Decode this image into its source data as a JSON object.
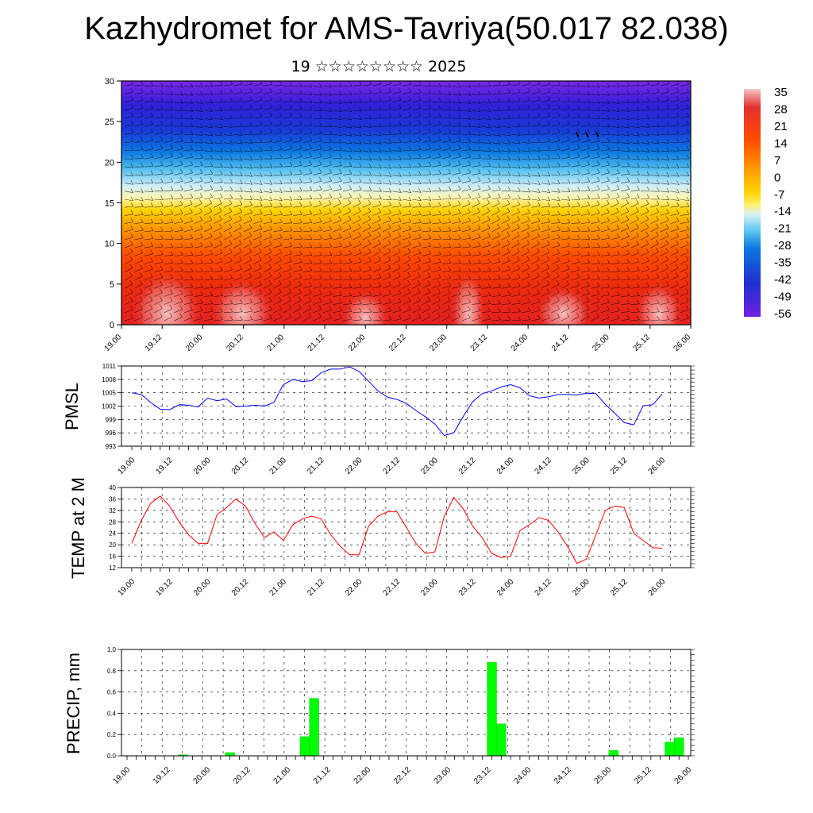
{
  "header": {
    "title": "Kazhydromet for AMS-Tavriya(50.017 82.038)",
    "subtitle": "19 ☆☆☆☆☆☆☆☆ 2025"
  },
  "time_labels": [
    "19.00",
    "19.12",
    "20.00",
    "20.12",
    "21.00",
    "21.12",
    "22.00",
    "22.12",
    "23.00",
    "23.12",
    "24.00",
    "24.12",
    "25.00",
    "25.12",
    "26.00"
  ],
  "chart_data": [
    {
      "id": "cross_section",
      "type": "heatmap",
      "description_kind": "temperature cross-section with wind barbs",
      "ylim": [
        0,
        30
      ],
      "yticks": [
        0,
        5,
        10,
        15,
        20,
        25,
        30
      ],
      "colorbar_labels": [
        "35",
        "28",
        "21",
        "14",
        "7",
        "0",
        "-7",
        "-14",
        "-21",
        "-28",
        "-35",
        "-42",
        "-49",
        "-56"
      ],
      "colorbar_colors": [
        "#f4c6c6",
        "#e33030",
        "#ff4a00",
        "#ff9a00",
        "#ffd200",
        "#fff070",
        "#d8f0f8",
        "#60c8f0",
        "#0a78e0",
        "#2030d0",
        "#7020e0"
      ]
    },
    {
      "id": "pmsl",
      "type": "line",
      "ylabel": "PMSL",
      "ylim": [
        993,
        1011
      ],
      "yticks": [
        993,
        996,
        999,
        1002,
        1005,
        1008,
        1011
      ],
      "color": "#0000ff",
      "values": [
        1005,
        1004.6,
        1002.8,
        1001.3,
        1001.2,
        1002.3,
        1002.2,
        1001.8,
        1003.8,
        1003.2,
        1003.6,
        1001.9,
        1002.0,
        1002.2,
        1002.0,
        1002.8,
        1006.8,
        1008.0,
        1007.5,
        1007.7,
        1009.5,
        1010.3,
        1010.3,
        1010.8,
        1009.8,
        1007.6,
        1005.4,
        1004.0,
        1003.5,
        1002.6,
        1001.0,
        999.6,
        998.0,
        995.4,
        996.0,
        999.7,
        1003.0,
        1004.8,
        1005.4,
        1006.3,
        1006.8,
        1006.1,
        1004.3,
        1003.8,
        1004.1,
        1004.6,
        1004.6,
        1004.5,
        1004.9,
        1004.8,
        1002.4,
        1000.4,
        998.3,
        997.8,
        1002.1,
        1002.3,
        1004.7
      ]
    },
    {
      "id": "t2m",
      "type": "line",
      "ylabel": "TEMP at 2 M",
      "ylim": [
        12,
        40
      ],
      "yticks": [
        12,
        16,
        20,
        24,
        28,
        32,
        36,
        40
      ],
      "color": "#ff0000",
      "values": [
        20.5,
        28.5,
        34.5,
        37,
        33.5,
        28,
        23.5,
        20.5,
        20.5,
        30.5,
        33,
        36,
        33.5,
        27.5,
        22.5,
        24.5,
        21.5,
        27,
        29,
        30,
        29,
        23.5,
        19.5,
        16.5,
        16.5,
        26.5,
        30,
        31.5,
        31.5,
        26,
        20.5,
        17,
        17.5,
        30,
        36.5,
        32.5,
        26.5,
        22.5,
        17,
        15.5,
        16,
        25,
        27,
        29.5,
        28.5,
        24.5,
        19.5,
        13.5,
        15,
        23.5,
        32,
        33.5,
        33,
        24,
        21.5,
        19,
        18.8
      ]
    },
    {
      "id": "precip",
      "type": "bar",
      "ylabel": "PRECIP, mm",
      "ylim": [
        0,
        1.0
      ],
      "yticks_labels": [
        "0.0",
        "0.2",
        "0.4",
        "0.6",
        "0.8",
        "1.0"
      ],
      "color": "#00ff00",
      "bars": [
        {
          "step": 6,
          "value": 0.01
        },
        {
          "step": 11,
          "value": 0.03
        },
        {
          "step": 19,
          "value": 0.18
        },
        {
          "step": 20,
          "value": 0.54
        },
        {
          "step": 39,
          "value": 0.88
        },
        {
          "step": 40,
          "value": 0.3
        },
        {
          "step": 52,
          "value": 0.05
        },
        {
          "step": 58,
          "value": 0.13
        },
        {
          "step": 59,
          "value": 0.17
        }
      ]
    }
  ]
}
